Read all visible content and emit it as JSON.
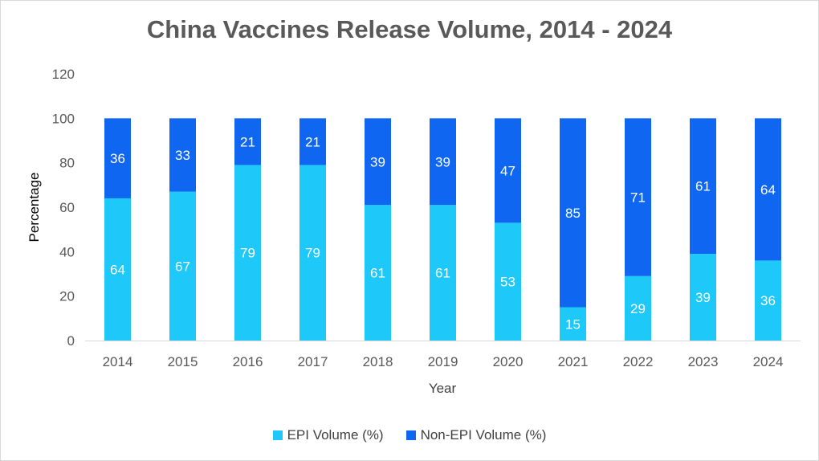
{
  "chart_data": {
    "type": "bar",
    "stacked": true,
    "title": "China Vaccines Release Volume, 2014 - 2024",
    "xlabel": "Year",
    "ylabel": "Percentage",
    "ylim": [
      0,
      120
    ],
    "yticks": [
      "0",
      "20",
      "40",
      "60",
      "80",
      "100",
      "120"
    ],
    "grid": false,
    "legend_position": "bottom",
    "categories": [
      "2014",
      "2015",
      "2016",
      "2017",
      "2018",
      "2019",
      "2020",
      "2021",
      "2022",
      "2023",
      "2024"
    ],
    "series": [
      {
        "name": "EPI Volume (%)",
        "color": "#1ec8f8",
        "values": [
          64,
          67,
          79,
          79,
          61,
          61,
          53,
          15,
          29,
          39,
          36
        ],
        "labels": [
          "64",
          "67",
          "79",
          "79",
          "61",
          "61",
          "53",
          "15",
          "29",
          "39",
          "36"
        ]
      },
      {
        "name": "Non-EPI Volume (%)",
        "color": "#0f66f0",
        "values": [
          36,
          33,
          21,
          21,
          39,
          39,
          47,
          85,
          71,
          61,
          64
        ],
        "labels": [
          "36",
          "33",
          "21",
          "21",
          "39",
          "39",
          "47",
          "85",
          "71",
          "61",
          "64"
        ]
      }
    ]
  }
}
